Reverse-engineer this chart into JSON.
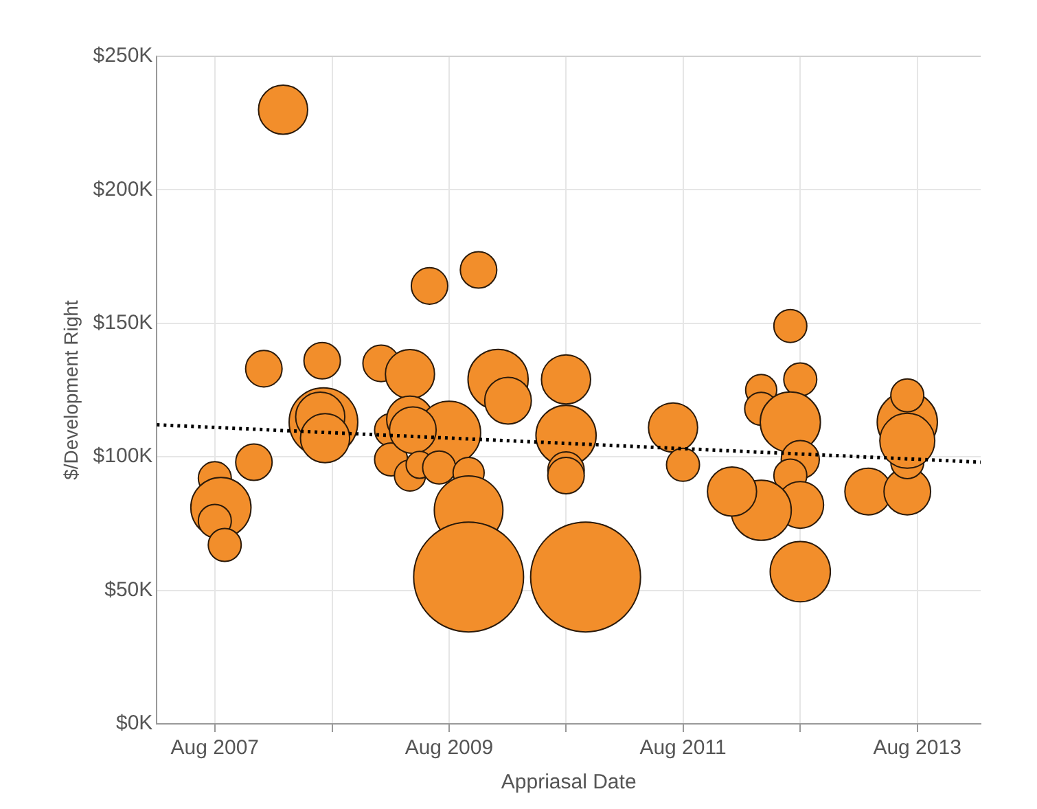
{
  "chart_data": {
    "type": "bubble",
    "xlabel": "Appriasal Date",
    "ylabel": "$/Development Right",
    "xlim": [
      "2007-02-01",
      "2014-02-15"
    ],
    "ylim": [
      0,
      250000
    ],
    "xticks": [
      {
        "value": "2007-08-01",
        "label": "Aug 2007"
      },
      {
        "value": "2008-08-01",
        "label": null
      },
      {
        "value": "2009-08-01",
        "label": "Aug 2009"
      },
      {
        "value": "2010-08-01",
        "label": null
      },
      {
        "value": "2011-08-01",
        "label": "Aug 2011"
      },
      {
        "value": "2012-08-01",
        "label": null
      },
      {
        "value": "2013-08-01",
        "label": "Aug 2013"
      }
    ],
    "yticks": [
      {
        "value": 0,
        "label": "$0K"
      },
      {
        "value": 50000,
        "label": "$50K"
      },
      {
        "value": 100000,
        "label": "$100K"
      },
      {
        "value": 150000,
        "label": "$150K"
      },
      {
        "value": 200000,
        "label": "$200K"
      },
      {
        "value": 250000,
        "label": "$250K"
      }
    ],
    "grid": true,
    "legend": false,
    "series": [
      {
        "type": "bubble",
        "color": "#f28e2b",
        "x": [
          "2008-03-01",
          "2008-01-01",
          "2008-07-01",
          "2009-01-01",
          "2009-04-01",
          "2008-07-05",
          "2008-06-25",
          "2008-07-10",
          "2007-12-01",
          "2007-08-01",
          "2007-08-20",
          "2007-08-01",
          "2007-09-01",
          "2009-02-01",
          "2009-02-01",
          "2009-04-01",
          "2009-04-01",
          "2009-06-01",
          "2009-11-01",
          "2010-01-01",
          "2010-02-01",
          "2010-08-01",
          "2010-08-01",
          "2010-08-01",
          "2010-08-01",
          "2009-08-01",
          "2009-04-10",
          "2009-05-01",
          "2009-07-01",
          "2009-10-01",
          "2009-10-01",
          "2009-10-01",
          "2010-10-01",
          "2011-07-01",
          "2011-08-01",
          "2012-07-01",
          "2012-08-01",
          "2012-04-01",
          "2012-04-01",
          "2012-07-01",
          "2012-08-01",
          "2012-07-01",
          "2012-08-01",
          "2012-04-01",
          "2012-01-01",
          "2012-08-01",
          "2013-03-01",
          "2013-07-01",
          "2013-07-01",
          "2013-07-01",
          "2013-07-01",
          "2013-07-01"
        ],
        "values": [
          230000,
          133000,
          136000,
          135000,
          131000,
          113000,
          115000,
          107000,
          98000,
          92000,
          81000,
          76000,
          67000,
          110000,
          99000,
          114000,
          93000,
          164000,
          170000,
          129000,
          121000,
          129000,
          108000,
          95000,
          93000,
          109000,
          110000,
          97000,
          96000,
          94000,
          80000,
          55000,
          55000,
          111000,
          97000,
          149000,
          129000,
          125000,
          118000,
          113000,
          99000,
          93000,
          82000,
          80000,
          87000,
          57000,
          87000,
          87000,
          98000,
          113000,
          123000,
          106000
        ],
        "sizes": [
          0.2,
          0.11,
          0.11,
          0.11,
          0.2,
          0.39,
          0.2,
          0.2,
          0.11,
          0.09,
          0.3,
          0.09,
          0.09,
          0.09,
          0.09,
          0.18,
          0.08,
          0.11,
          0.11,
          0.3,
          0.18,
          0.2,
          0.3,
          0.11,
          0.11,
          0.33,
          0.18,
          0.06,
          0.09,
          0.08,
          0.39,
          1,
          1,
          0.2,
          0.09,
          0.09,
          0.09,
          0.08,
          0.09,
          0.3,
          0.12,
          0.09,
          0.18,
          0.3,
          0.2,
          0.3,
          0.18,
          0.18,
          0.09,
          0.3,
          0.09,
          0.25
        ]
      },
      {
        "type": "line",
        "color": "#000000",
        "line_style": "dotted",
        "marker": "none",
        "x": [
          "2007-02-01",
          "2014-02-15"
        ],
        "values": [
          112000,
          98000
        ]
      }
    ]
  }
}
